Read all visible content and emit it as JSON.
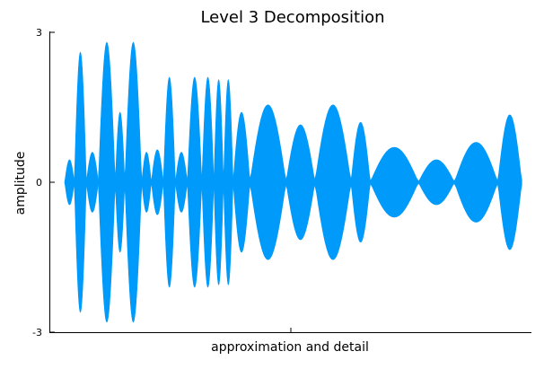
{
  "chart_data": {
    "type": "line",
    "title": "Level 3 Decomposition",
    "xlabel": "approximation and detail",
    "ylabel": "amplitude",
    "ylim": [
      -3,
      3
    ],
    "xlim": [
      0,
      1
    ],
    "y_ticks": [
      {
        "value": -3,
        "label": "-3"
      },
      {
        "value": 0,
        "label": "0"
      },
      {
        "value": 3,
        "label": "3"
      }
    ],
    "x_ticks": [
      0.5
    ],
    "grid": false,
    "legend": "none",
    "series_color": "#009AFA",
    "segments": [
      {
        "start": 0.03,
        "end": 0.05,
        "amp": 0.45
      },
      {
        "start": 0.05,
        "end": 0.075,
        "amp": 2.6
      },
      {
        "start": 0.075,
        "end": 0.1,
        "amp": 0.6
      },
      {
        "start": 0.1,
        "end": 0.135,
        "amp": 2.8
      },
      {
        "start": 0.135,
        "end": 0.155,
        "amp": 1.4
      },
      {
        "start": 0.155,
        "end": 0.19,
        "amp": 2.8
      },
      {
        "start": 0.19,
        "end": 0.21,
        "amp": 0.6
      },
      {
        "start": 0.21,
        "end": 0.235,
        "amp": 0.65
      },
      {
        "start": 0.235,
        "end": 0.26,
        "amp": 2.1
      },
      {
        "start": 0.26,
        "end": 0.285,
        "amp": 0.6
      },
      {
        "start": 0.285,
        "end": 0.315,
        "amp": 2.1
      },
      {
        "start": 0.315,
        "end": 0.34,
        "amp": 2.1
      },
      {
        "start": 0.34,
        "end": 0.36,
        "amp": 2.05
      },
      {
        "start": 0.36,
        "end": 0.38,
        "amp": 2.05
      },
      {
        "start": 0.38,
        "end": 0.415,
        "amp": 1.4
      },
      {
        "start": 0.415,
        "end": 0.49,
        "amp": 1.55
      },
      {
        "start": 0.49,
        "end": 0.55,
        "amp": 1.15
      },
      {
        "start": 0.55,
        "end": 0.625,
        "amp": 1.55
      },
      {
        "start": 0.625,
        "end": 0.665,
        "amp": 1.2
      },
      {
        "start": 0.665,
        "end": 0.765,
        "amp": 0.7
      },
      {
        "start": 0.765,
        "end": 0.84,
        "amp": 0.45
      },
      {
        "start": 0.84,
        "end": 0.93,
        "amp": 0.8
      },
      {
        "start": 0.93,
        "end": 0.98,
        "amp": 1.35
      }
    ]
  }
}
